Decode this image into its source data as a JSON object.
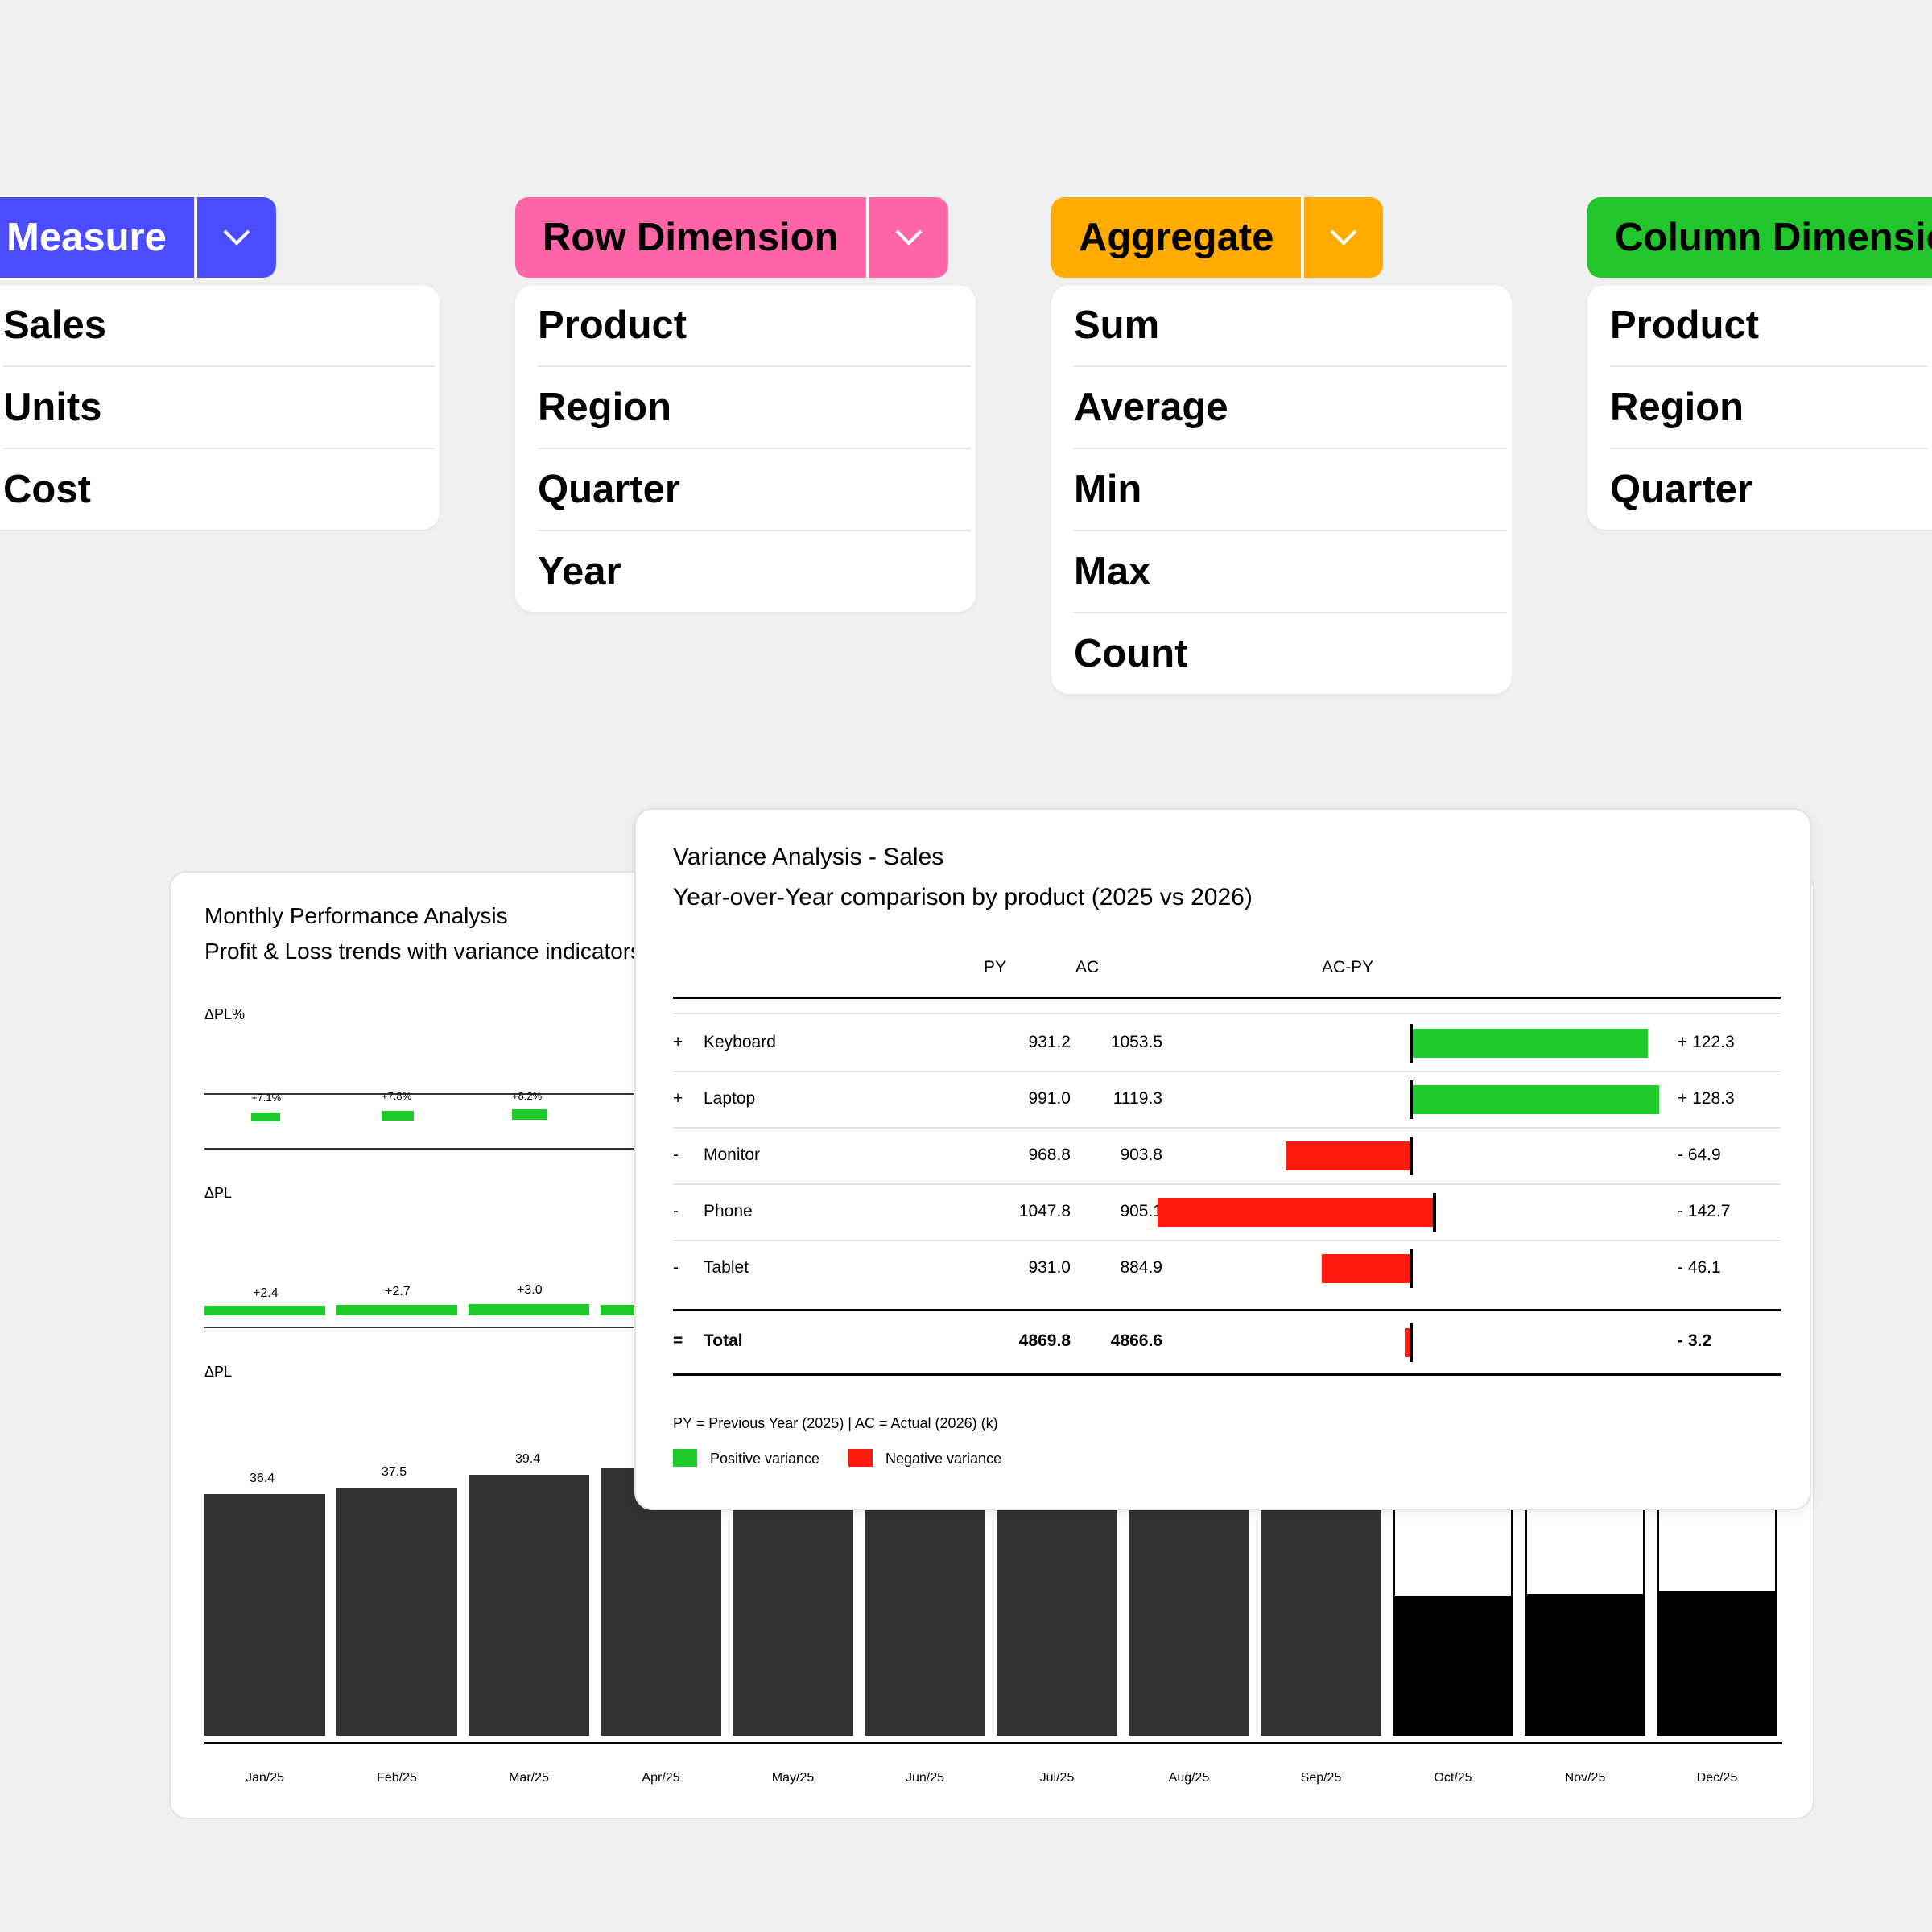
{
  "dropdowns": [
    {
      "label": "Measure",
      "color": "#4b4bff",
      "items": [
        "Sales",
        "Units",
        "Cost"
      ]
    },
    {
      "label": "Row Dimension",
      "color": "#ff66a8",
      "items": [
        "Product",
        "Region",
        "Quarter",
        "Year"
      ]
    },
    {
      "label": "Aggregate",
      "color": "#ffab00",
      "items": [
        "Sum",
        "Average",
        "Min",
        "Max",
        "Count"
      ]
    },
    {
      "label": "Column Dimension",
      "color": "#22c52c",
      "items": [
        "Product",
        "Region",
        "Quarter"
      ]
    }
  ],
  "monthly": {
    "title": "Monthly Performance Analysis",
    "subtitle": "Profit & Loss trends with variance indicators",
    "section_labels": [
      "ΔPL%",
      "ΔPL",
      "ΔPL"
    ],
    "pct_labels": [
      "+7.1%",
      "+7.8%",
      "+8.2%"
    ],
    "delta_labels": [
      "+2.4",
      "+2.7",
      "+3.0"
    ],
    "value_labels": [
      "36.4",
      "37.5",
      "39.4"
    ],
    "months": [
      "Jan/25",
      "Feb/25",
      "Mar/25",
      "Apr/25",
      "May/25",
      "Jun/25",
      "Jul/25",
      "Aug/25",
      "Sep/25",
      "Oct/25",
      "Nov/25",
      "Dec/25"
    ]
  },
  "variance": {
    "title": "Variance Analysis - Sales",
    "subtitle": "Year-over-Year comparison by product (2025 vs 2026)",
    "col_py": "PY",
    "col_ac": "AC",
    "col_diff": "AC-PY",
    "rows": [
      {
        "sign": "+",
        "name": "Keyboard",
        "py": "931.2",
        "ac": "1053.5",
        "diff": "+ 122.3"
      },
      {
        "sign": "+",
        "name": "Laptop",
        "py": "991.0",
        "ac": "1119.3",
        "diff": "+ 128.3"
      },
      {
        "sign": "-",
        "name": "Monitor",
        "py": "968.8",
        "ac": "903.8",
        "diff": "- 64.9"
      },
      {
        "sign": "-",
        "name": "Phone",
        "py": "1047.8",
        "ac": "905.1",
        "diff": "- 142.7"
      },
      {
        "sign": "-",
        "name": "Tablet",
        "py": "931.0",
        "ac": "884.9",
        "diff": "- 46.1"
      }
    ],
    "total": {
      "sign": "=",
      "name": "Total",
      "py": "4869.8",
      "ac": "4866.6",
      "diff": "- 3.2"
    },
    "footnote": "PY = Previous Year (2025) | AC = Actual (2026) (k)",
    "legend_pos": "Positive variance",
    "legend_neg": "Negative variance",
    "pos_color": "#1ecb2a",
    "neg_color": "#ff1a0d"
  },
  "chart_data": {
    "type": "bar",
    "title": "Variance Analysis - Sales",
    "categories": [
      "Keyboard",
      "Laptop",
      "Monitor",
      "Phone",
      "Tablet"
    ],
    "series": [
      {
        "name": "PY",
        "values": [
          931.2,
          991.0,
          968.8,
          1047.8,
          931.0
        ]
      },
      {
        "name": "AC",
        "values": [
          1053.5,
          1119.3,
          903.8,
          905.1,
          884.9
        ]
      },
      {
        "name": "AC-PY",
        "values": [
          122.3,
          128.3,
          -64.9,
          -142.7,
          -46.1
        ]
      }
    ]
  }
}
